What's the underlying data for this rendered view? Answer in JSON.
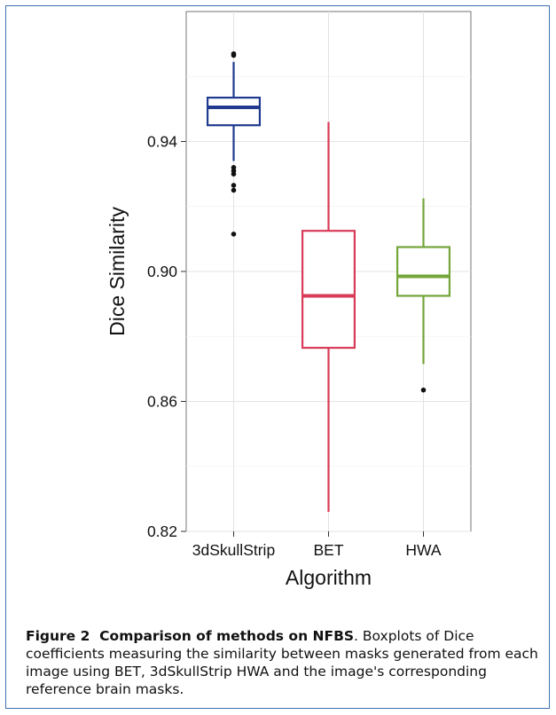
{
  "chart_data": {
    "type": "box",
    "xlabel": "Algorithm",
    "ylabel": "Dice Similarity",
    "ylim": [
      0.82,
      0.98
    ],
    "yticks": [
      0.82,
      0.86,
      0.9,
      0.94
    ],
    "ytick_labels": [
      "0.82",
      "0.86",
      "0.90",
      "0.94"
    ],
    "grid": true,
    "background": "#ffffff",
    "categories": [
      "3dSkullStrip",
      "BET",
      "HWA"
    ],
    "boxes": [
      {
        "category": "3dSkullStrip",
        "color": "#1f3a8f",
        "whisker_low": 0.934,
        "q1": 0.945,
        "median": 0.9505,
        "q3": 0.9535,
        "whisker_high": 0.9645,
        "outliers": [
          0.9665,
          0.967,
          0.932,
          0.931,
          0.93,
          0.9265,
          0.925,
          0.9115
        ]
      },
      {
        "category": "BET",
        "color": "#d93a57",
        "whisker_low": 0.826,
        "q1": 0.8765,
        "median": 0.8925,
        "q3": 0.9125,
        "whisker_high": 0.946,
        "outliers": []
      },
      {
        "category": "HWA",
        "color": "#74a53a",
        "whisker_low": 0.8715,
        "q1": 0.8925,
        "median": 0.8985,
        "q3": 0.9075,
        "whisker_high": 0.9225,
        "outliers": [
          0.8635
        ]
      }
    ]
  },
  "caption": {
    "label": "Figure 2",
    "title": "Comparison of methods on NFBS",
    "text": ". Boxplots of Dice coefficients measuring the similarity between masks generated from each image using BET, 3dSkullStrip HWA and the image's corresponding reference brain masks."
  }
}
